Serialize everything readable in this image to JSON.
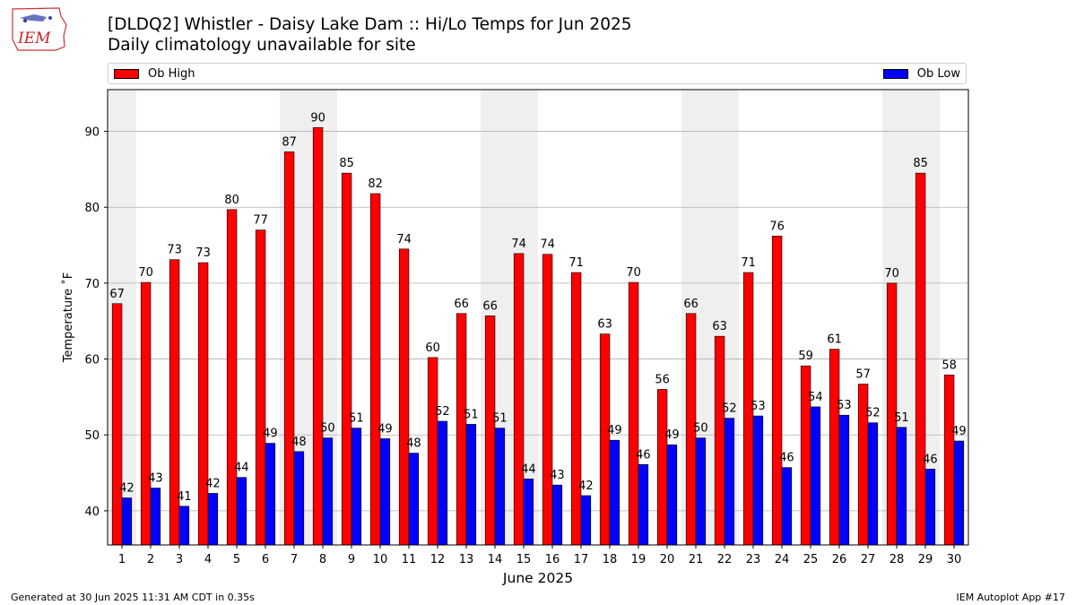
{
  "header": {
    "logo_text": "IEM",
    "title": "[DLDQ2] Whistler - Daisy Lake Dam :: Hi/Lo Temps for Jun 2025",
    "subtitle": "Daily climatology unavailable for site"
  },
  "legend": {
    "high_label": "Ob High",
    "low_label": "Ob Low"
  },
  "footer": {
    "left": "Generated at 30 Jun 2025 11:31 AM CDT in 0.35s",
    "right": "IEM Autoplot App #17"
  },
  "colors": {
    "high": "#ff0000",
    "low": "#0000ff",
    "weekend_band": "#efefef",
    "grid": "#b0b0b0"
  },
  "chart_data": {
    "type": "bar",
    "title": "[DLDQ2] Whistler - Daisy Lake Dam :: Hi/Lo Temps for Jun 2025",
    "xlabel": "June 2025",
    "ylabel": "Temperature ˚F",
    "ylim": [
      35.5,
      95.5
    ],
    "yticks": [
      40,
      50,
      60,
      70,
      80,
      90
    ],
    "grid": true,
    "legend_position": "top",
    "categories": [
      "1",
      "2",
      "3",
      "4",
      "5",
      "6",
      "7",
      "8",
      "9",
      "10",
      "11",
      "12",
      "13",
      "14",
      "15",
      "16",
      "17",
      "18",
      "19",
      "20",
      "21",
      "22",
      "23",
      "24",
      "25",
      "26",
      "27",
      "28",
      "29",
      "30"
    ],
    "shaded_days": [
      "1",
      "7",
      "8",
      "14",
      "15",
      "21",
      "22",
      "28",
      "29"
    ],
    "series": [
      {
        "name": "Ob High",
        "values": [
          67.3,
          70.1,
          73.1,
          72.7,
          79.7,
          77.0,
          87.3,
          90.5,
          84.5,
          81.8,
          74.5,
          60.2,
          66.0,
          65.7,
          73.9,
          73.8,
          71.4,
          63.3,
          70.1,
          56.0,
          66.0,
          63.0,
          71.4,
          76.2,
          59.1,
          61.3,
          56.7,
          70.0,
          84.5,
          57.9
        ],
        "labels": [
          "67",
          "70",
          "73",
          "73",
          "80",
          "77",
          "87",
          "90",
          "85",
          "82",
          "74",
          "60",
          "66",
          "66",
          "74",
          "74",
          "71",
          "63",
          "70",
          "56",
          "66",
          "63",
          "71",
          "76",
          "59",
          "61",
          "57",
          "70",
          "85",
          "58"
        ]
      },
      {
        "name": "Ob Low",
        "values": [
          41.7,
          43.0,
          40.6,
          42.3,
          44.4,
          48.9,
          47.8,
          49.6,
          50.9,
          49.5,
          47.6,
          51.8,
          51.4,
          50.9,
          44.2,
          43.4,
          42.0,
          49.3,
          46.1,
          48.7,
          49.6,
          52.2,
          52.5,
          45.7,
          53.7,
          52.6,
          51.6,
          51.0,
          45.5,
          49.2
        ],
        "labels": [
          "42",
          "43",
          "41",
          "42",
          "44",
          "49",
          "48",
          "50",
          "51",
          "49",
          "48",
          "52",
          "51",
          "51",
          "44",
          "43",
          "42",
          "49",
          "46",
          "49",
          "50",
          "52",
          "53",
          "46",
          "54",
          "53",
          "52",
          "51",
          "46",
          "49"
        ]
      }
    ]
  }
}
